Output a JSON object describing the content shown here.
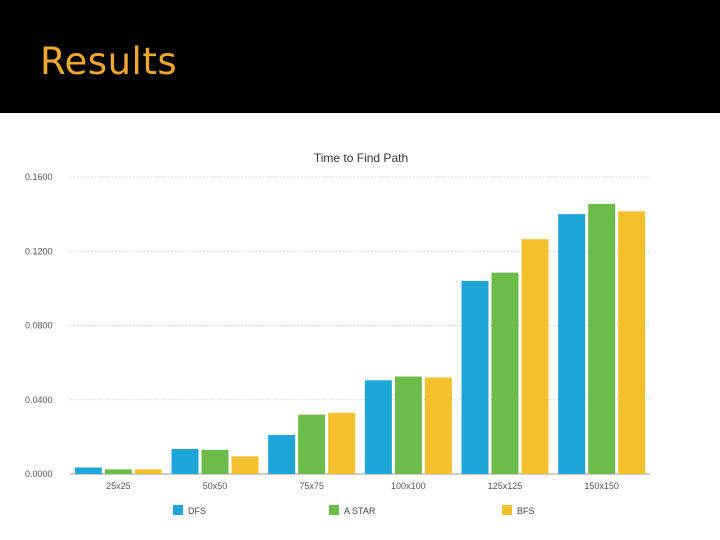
{
  "slide": {
    "title": "Results",
    "title_color": "#f0a830",
    "band_color": "#000000"
  },
  "chart_data": {
    "type": "bar",
    "title": "Time to Find Path",
    "xlabel": "",
    "ylabel": "",
    "ylim": [
      0,
      0.16
    ],
    "yticks": [
      "0.0000",
      "0.0400",
      "0.0800",
      "0.1200",
      "0.1600"
    ],
    "ytick_values": [
      0,
      0.04,
      0.08,
      0.12,
      0.16
    ],
    "grid": true,
    "legend_position": "bottom",
    "categories": [
      "25x25",
      "50x50",
      "75x75",
      "100x100",
      "125x125",
      "150x150"
    ],
    "series": [
      {
        "name": "DFS",
        "color": "#1fa6d9",
        "values": [
          0.0035,
          0.0135,
          0.021,
          0.0505,
          0.104,
          0.14
        ]
      },
      {
        "name": "A STAR",
        "color": "#6dbb4a",
        "values": [
          0.0025,
          0.013,
          0.032,
          0.0525,
          0.1085,
          0.1455
        ]
      },
      {
        "name": "BFS",
        "color": "#f4c02e",
        "values": [
          0.0025,
          0.0095,
          0.033,
          0.052,
          0.1265,
          0.1415
        ]
      }
    ]
  }
}
